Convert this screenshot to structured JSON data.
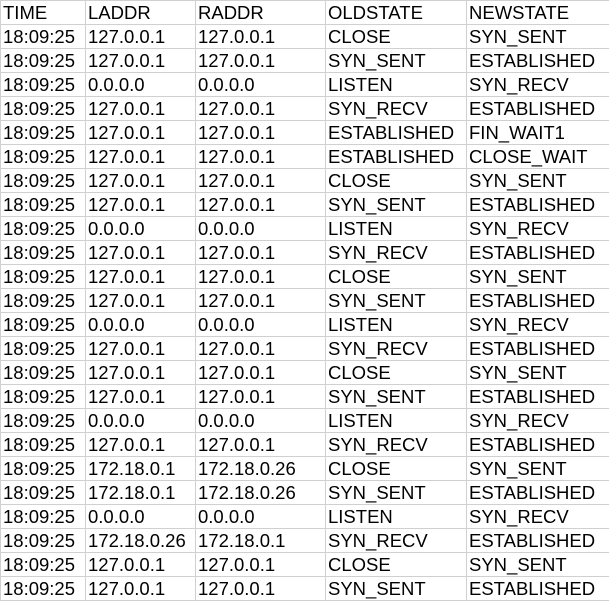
{
  "table": {
    "headers": [
      "TIME",
      "LADDR",
      "RADDR",
      "OLDSTATE",
      "NEWSTATE"
    ],
    "rows": [
      [
        "18:09:25",
        "127.0.0.1",
        "127.0.0.1",
        "CLOSE",
        "SYN_SENT"
      ],
      [
        "18:09:25",
        "127.0.0.1",
        "127.0.0.1",
        "SYN_SENT",
        "ESTABLISHED"
      ],
      [
        "18:09:25",
        "0.0.0.0",
        "0.0.0.0",
        "LISTEN",
        "SYN_RECV"
      ],
      [
        "18:09:25",
        "127.0.0.1",
        "127.0.0.1",
        "SYN_RECV",
        "ESTABLISHED"
      ],
      [
        "18:09:25",
        "127.0.0.1",
        "127.0.0.1",
        "ESTABLISHED",
        "FIN_WAIT1"
      ],
      [
        "18:09:25",
        "127.0.0.1",
        "127.0.0.1",
        "ESTABLISHED",
        "CLOSE_WAIT"
      ],
      [
        "18:09:25",
        "127.0.0.1",
        "127.0.0.1",
        "CLOSE",
        "SYN_SENT"
      ],
      [
        "18:09:25",
        "127.0.0.1",
        "127.0.0.1",
        "SYN_SENT",
        "ESTABLISHED"
      ],
      [
        "18:09:25",
        "0.0.0.0",
        "0.0.0.0",
        "LISTEN",
        "SYN_RECV"
      ],
      [
        "18:09:25",
        "127.0.0.1",
        "127.0.0.1",
        "SYN_RECV",
        "ESTABLISHED"
      ],
      [
        "18:09:25",
        "127.0.0.1",
        "127.0.0.1",
        "CLOSE",
        "SYN_SENT"
      ],
      [
        "18:09:25",
        "127.0.0.1",
        "127.0.0.1",
        "SYN_SENT",
        "ESTABLISHED"
      ],
      [
        "18:09:25",
        "0.0.0.0",
        "0.0.0.0",
        "LISTEN",
        "SYN_RECV"
      ],
      [
        "18:09:25",
        "127.0.0.1",
        "127.0.0.1",
        "SYN_RECV",
        "ESTABLISHED"
      ],
      [
        "18:09:25",
        "127.0.0.1",
        "127.0.0.1",
        "CLOSE",
        "SYN_SENT"
      ],
      [
        "18:09:25",
        "127.0.0.1",
        "127.0.0.1",
        "SYN_SENT",
        "ESTABLISHED"
      ],
      [
        "18:09:25",
        "0.0.0.0",
        "0.0.0.0",
        "LISTEN",
        "SYN_RECV"
      ],
      [
        "18:09:25",
        "127.0.0.1",
        "127.0.0.1",
        "SYN_RECV",
        "ESTABLISHED"
      ],
      [
        "18:09:25",
        "172.18.0.1",
        "172.18.0.26",
        "CLOSE",
        "SYN_SENT"
      ],
      [
        "18:09:25",
        "172.18.0.1",
        "172.18.0.26",
        "SYN_SENT",
        "ESTABLISHED"
      ],
      [
        "18:09:25",
        "0.0.0.0",
        "0.0.0.0",
        "LISTEN",
        "SYN_RECV"
      ],
      [
        "18:09:25",
        "172.18.0.26",
        "172.18.0.1",
        "SYN_RECV",
        "ESTABLISHED"
      ],
      [
        "18:09:25",
        "127.0.0.1",
        "127.0.0.1",
        "CLOSE",
        "SYN_SENT"
      ],
      [
        "18:09:25",
        "127.0.0.1",
        "127.0.0.1",
        "SYN_SENT",
        "ESTABLISHED"
      ]
    ]
  }
}
